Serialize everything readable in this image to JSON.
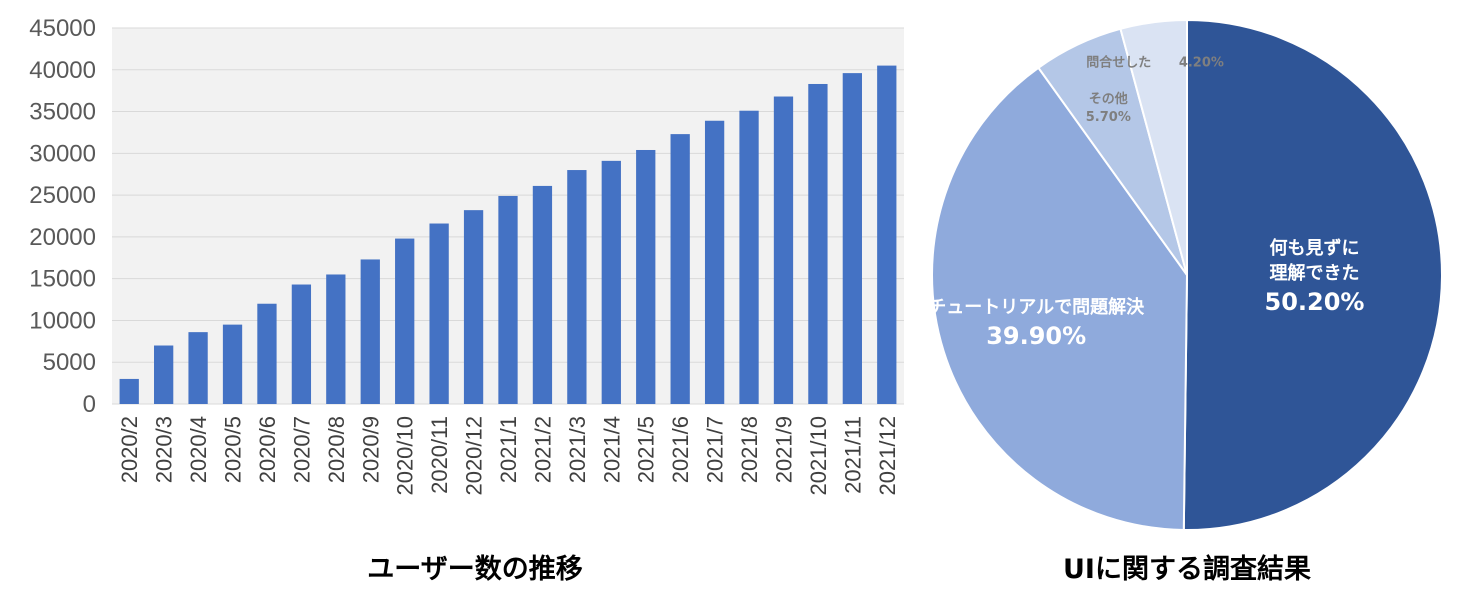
{
  "chart_data": [
    {
      "type": "bar",
      "title": "ユーザー数の推移",
      "xlabel": "",
      "ylabel": "",
      "ylim": [
        0,
        45000
      ],
      "yticks": [
        0,
        5000,
        10000,
        15000,
        20000,
        25000,
        30000,
        35000,
        40000,
        45000
      ],
      "grid": true,
      "color": "#4472c4",
      "categories": [
        "2020/2",
        "2020/3",
        "2020/4",
        "2020/5",
        "2020/6",
        "2020/7",
        "2020/8",
        "2020/9",
        "2020/10",
        "2020/11",
        "2020/12",
        "2021/1",
        "2021/2",
        "2021/3",
        "2021/4",
        "2021/5",
        "2021/6",
        "2021/7",
        "2021/8",
        "2021/9",
        "2021/10",
        "2021/11",
        "2021/12"
      ],
      "values": [
        3000,
        7000,
        8600,
        9500,
        12000,
        14300,
        15500,
        17300,
        19800,
        21600,
        23200,
        24900,
        26100,
        28000,
        29100,
        30400,
        32300,
        33900,
        35100,
        36800,
        38300,
        39600,
        40500
      ]
    },
    {
      "type": "pie",
      "title": "UIに関する調査結果",
      "slices": [
        {
          "name": "何も見ずに理解できた",
          "lines": [
            "何も見ずに",
            "理解できた"
          ],
          "label": "50.20%",
          "value": 50.2,
          "color": "#2f5597",
          "label_color": "#ffffff"
        },
        {
          "name": "チュートリアルで問題解決",
          "lines": [
            "チュートリアルで問題解決"
          ],
          "label": "39.90%",
          "value": 39.9,
          "color": "#8faadc",
          "label_color": "#ffffff"
        },
        {
          "name": "その他",
          "lines": [
            "その他"
          ],
          "label": "5.70%",
          "value": 5.7,
          "color": "#b4c7e7",
          "label_color": "#7f7f7f"
        },
        {
          "name": "問合せした",
          "lines": [
            "問合せした"
          ],
          "label": "4.20%",
          "value": 4.2,
          "color": "#dae3f3",
          "label_color": "#7f7f7f"
        }
      ]
    }
  ]
}
